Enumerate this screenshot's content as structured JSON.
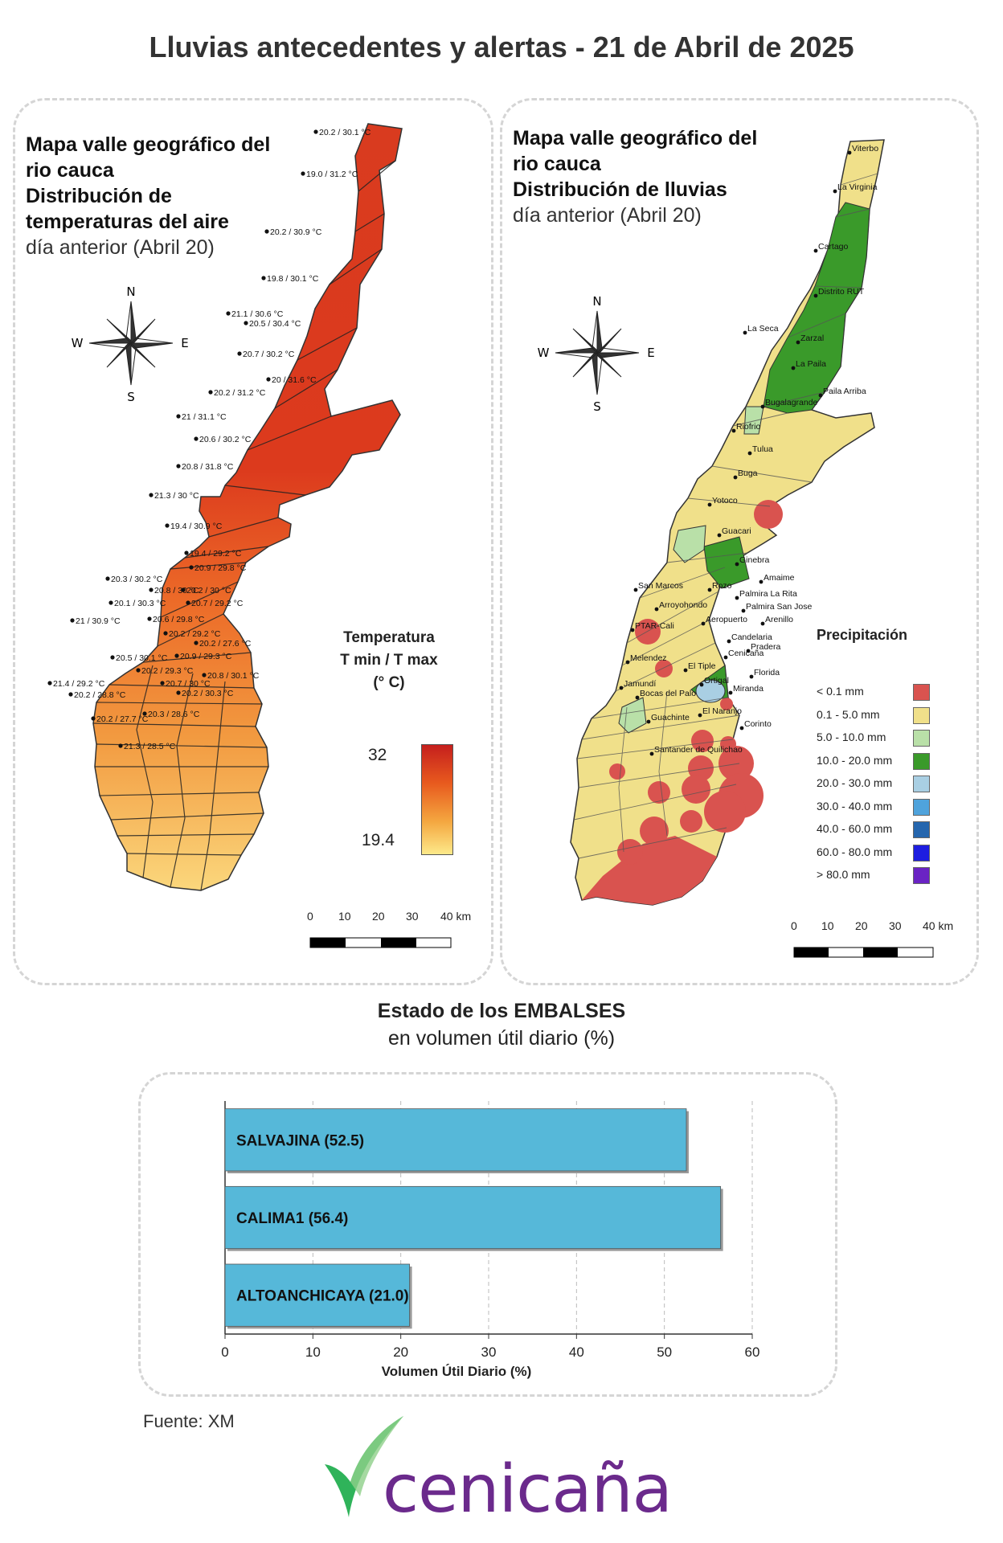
{
  "title": "Lluvias antecedentes y alertas - 21 de Abril de 2025",
  "left_panel": {
    "title_lines": [
      "Mapa valle geográfico del",
      "rio cauca",
      "Distribución de",
      "temperaturas del aire"
    ],
    "subtitle": "día anterior (Abril 20)",
    "compass": {
      "n": "N",
      "s": "S",
      "e": "E",
      "w": "W"
    },
    "legend_title": [
      "Temperatura",
      "T min / T max",
      "(° C)"
    ],
    "legend_max": "32",
    "legend_min": "19.4",
    "scale_labels": [
      "0",
      "10",
      "20",
      "30",
      "40 km"
    ],
    "stations": [
      "20.2 / 30.1 °C",
      "19.0 / 31.2 °C",
      "20.2 / 30.9 °C",
      "19.8 / 30.1 °C",
      "21.1 / 30.6 °C",
      "20.5 / 30.4 °C",
      "20.7 / 30.2 °C",
      "20 / 31.6 °C",
      "20.2 / 31.2 °C",
      "21 / 31.1 °C",
      "20.6 / 30.2 °C",
      "20.8 / 31.8 °C",
      "21.3 / 30 °C",
      "19.4 / 30.9 °C",
      "19.4 / 29.2 °C",
      "20.9 / 29.8 °C",
      "20.3 / 30.2 °C",
      "20.8 / 30 °C",
      "20.2 / 30 °C",
      "20.1 / 30.3 °C",
      "20.7 / 29.2 °C",
      "21 / 30.9 °C",
      "20.6 / 29.8 °C",
      "20.2 / 29.2 °C",
      "20.2 / 27.6 °C",
      "20.5 / 30.1 °C",
      "20.9 / 29.3 °C",
      "20.2 / 29.3 °C",
      "20.8 / 30.1 °C",
      "21.4 / 29.2 °C",
      "20.7 / 30 °C",
      "20.2 / 28.8 °C",
      "20.2 / 30.3 °C",
      "20.3 / 28.6 °C",
      "20.2 / 27.7 °C",
      "21.3 / 28.5 °C"
    ]
  },
  "right_panel": {
    "title_lines": [
      "Mapa valle geográfico del",
      "rio cauca"
    ],
    "title_bold": "Distribución de lluvias",
    "subtitle": "día anterior (Abril 20)",
    "compass": {
      "n": "N",
      "s": "S",
      "e": "E",
      "w": "W"
    },
    "legend_title": "Precipitación",
    "legend": [
      {
        "label": "< 0.1 mm",
        "color": "#d9534f"
      },
      {
        "label": "0.1 - 5.0 mm",
        "color": "#f0e08a"
      },
      {
        "label": "5.0 - 10.0 mm",
        "color": "#b9e0a8"
      },
      {
        "label": "10.0 - 20.0 mm",
        "color": "#3a9a2a"
      },
      {
        "label": "20.0 - 30.0 mm",
        "color": "#a9cfe3"
      },
      {
        "label": "30.0 - 40.0 mm",
        "color": "#4fa3dc"
      },
      {
        "label": "40.0 - 60.0 mm",
        "color": "#2566ae"
      },
      {
        "label": "60.0 - 80.0 mm",
        "color": "#1d1de0"
      },
      {
        "label": "> 80.0 mm",
        "color": "#6a23c4"
      }
    ],
    "scale_labels": [
      "0",
      "10",
      "20",
      "30",
      "40 km"
    ],
    "places": [
      "Viterbo",
      "La Virginia",
      "Cartago",
      "Distrito RUT",
      "La Seca",
      "Zarzal",
      "La Paila",
      "Paila Arriba",
      "Bugalagrande",
      "Riofrio",
      "Tulua",
      "Buga",
      "Yotoco",
      "Guacari",
      "Ginebra",
      "Amaime",
      "San Marcos",
      "Rozo",
      "Palmira La Rita",
      "Arroyohondo",
      "Palmira San Jose",
      "Aeropuerto",
      "Arenillo",
      "PTAR-Cali",
      "Candelaria",
      "Pradera",
      "Cenicaña",
      "Melendez",
      "El Tiple",
      "Florida",
      "Jamundí",
      "Bocas del Palo",
      "Ortigal",
      "Miranda",
      "El Naranjo",
      "Guachinte",
      "Corinto",
      "Santander de Quilichao"
    ]
  },
  "reservoirs": {
    "title": "Estado de los EMBALSES",
    "subtitle": "en volumen útil diario (%)",
    "source": "Fuente: XM"
  },
  "chart_data": {
    "type": "bar",
    "orientation": "horizontal",
    "categories": [
      "SALVAJINA",
      "CALIMA1",
      "ALTOANCHICAYA"
    ],
    "bar_labels": [
      "SALVAJINA (52.5)",
      "CALIMA1 (56.4)",
      "ALTOANCHICAYA (21.0)"
    ],
    "values": [
      52.5,
      56.4,
      21.0
    ],
    "xlabel": "Volumen Útil Diario (%)",
    "xlim": [
      0,
      60
    ],
    "xticks": [
      "0",
      "10",
      "20",
      "30",
      "40",
      "50",
      "60"
    ],
    "bar_color": "#56b8d9",
    "grid": true
  },
  "logo": {
    "text": "cenicaña",
    "text_color": "#6b2a8c",
    "mark_color": "#2fb35a"
  }
}
